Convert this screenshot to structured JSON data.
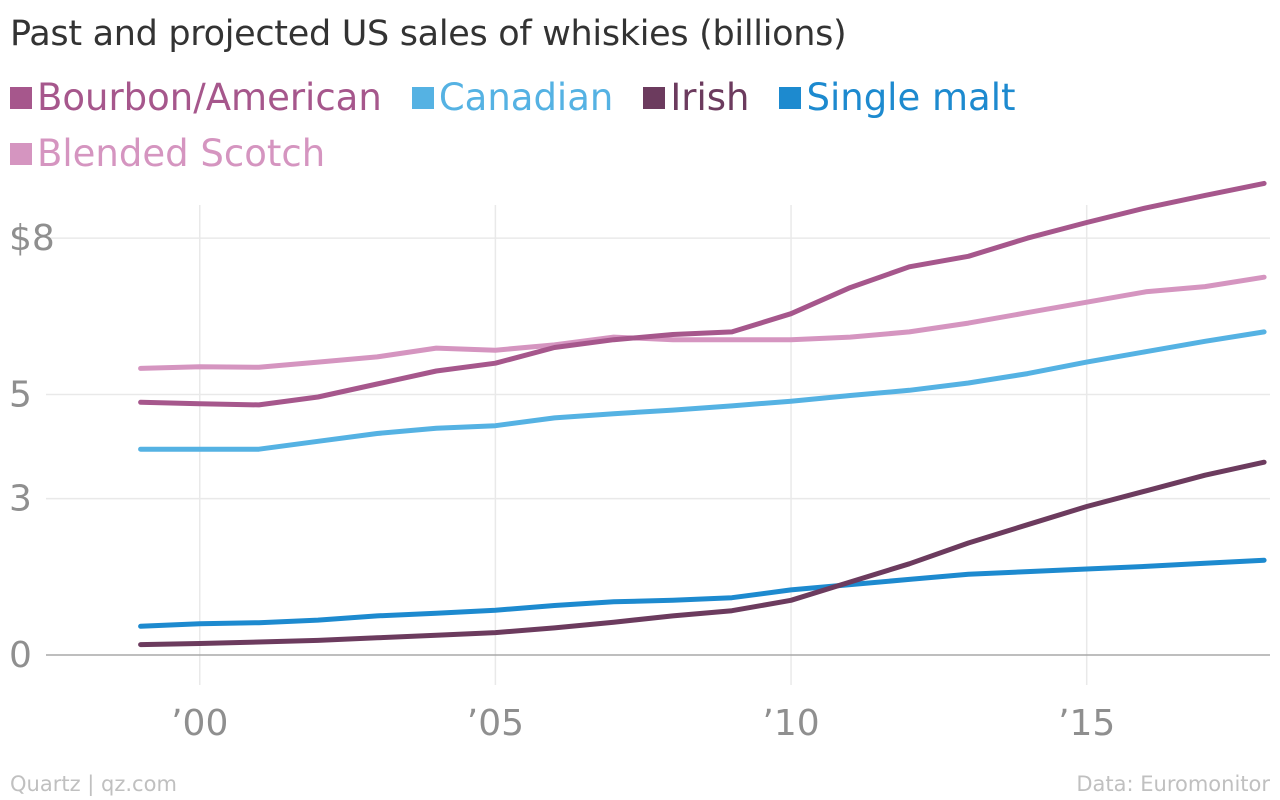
{
  "chart_data": {
    "type": "line",
    "title": "Past and projected US sales of whiskies (billions)",
    "x": [
      1999,
      2000,
      2001,
      2002,
      2003,
      2004,
      2005,
      2006,
      2007,
      2008,
      2009,
      2010,
      2011,
      2012,
      2013,
      2014,
      2015,
      2016,
      2017,
      2018
    ],
    "x_ticks": [
      {
        "value": 2000,
        "label": "’00"
      },
      {
        "value": 2005,
        "label": "’05"
      },
      {
        "value": 2010,
        "label": "’10"
      },
      {
        "value": 2015,
        "label": "’15"
      }
    ],
    "y_ticks": [
      {
        "value": 0,
        "label": "0"
      },
      {
        "value": 3,
        "label": "3"
      },
      {
        "value": 5,
        "label": "5"
      },
      {
        "value": 8,
        "label": "$8"
      }
    ],
    "xlim": [
      1997.4,
      2018.1
    ],
    "ylim": [
      0,
      9
    ],
    "grid": true,
    "legend_position": "top",
    "series": [
      {
        "name": "Bourbon/American",
        "color": "#a6578c",
        "values": [
          4.85,
          4.82,
          4.8,
          4.95,
          5.2,
          5.45,
          5.6,
          5.9,
          6.05,
          6.15,
          6.2,
          6.55,
          7.05,
          7.45,
          7.65,
          8.0,
          8.3,
          8.58,
          8.82,
          9.05
        ]
      },
      {
        "name": "Canadian",
        "color": "#55b2e3",
        "values": [
          3.95,
          3.95,
          3.95,
          4.1,
          4.25,
          4.35,
          4.4,
          4.55,
          4.63,
          4.7,
          4.78,
          4.87,
          4.98,
          5.08,
          5.22,
          5.4,
          5.62,
          5.82,
          6.02,
          6.2
        ]
      },
      {
        "name": "Irish",
        "color": "#6c3b5e",
        "values": [
          0.2,
          0.22,
          0.25,
          0.28,
          0.33,
          0.38,
          0.43,
          0.52,
          0.63,
          0.75,
          0.85,
          1.05,
          1.4,
          1.75,
          2.15,
          2.5,
          2.85,
          3.15,
          3.45,
          3.7
        ]
      },
      {
        "name": "Single malt",
        "color": "#1d8acf",
        "values": [
          0.55,
          0.6,
          0.62,
          0.67,
          0.75,
          0.8,
          0.86,
          0.95,
          1.02,
          1.05,
          1.1,
          1.25,
          1.35,
          1.45,
          1.55,
          1.6,
          1.65,
          1.7,
          1.76,
          1.82
        ]
      },
      {
        "name": "Blended Scotch",
        "color": "#d595c0",
        "values": [
          5.5,
          5.53,
          5.52,
          5.62,
          5.72,
          5.89,
          5.85,
          5.95,
          6.1,
          6.05,
          6.05,
          6.05,
          6.1,
          6.2,
          6.37,
          6.57,
          6.77,
          6.97,
          7.07,
          7.25
        ]
      }
    ]
  },
  "footer": {
    "left": "Quartz | qz.com",
    "right": "Data: Euromonitor"
  }
}
